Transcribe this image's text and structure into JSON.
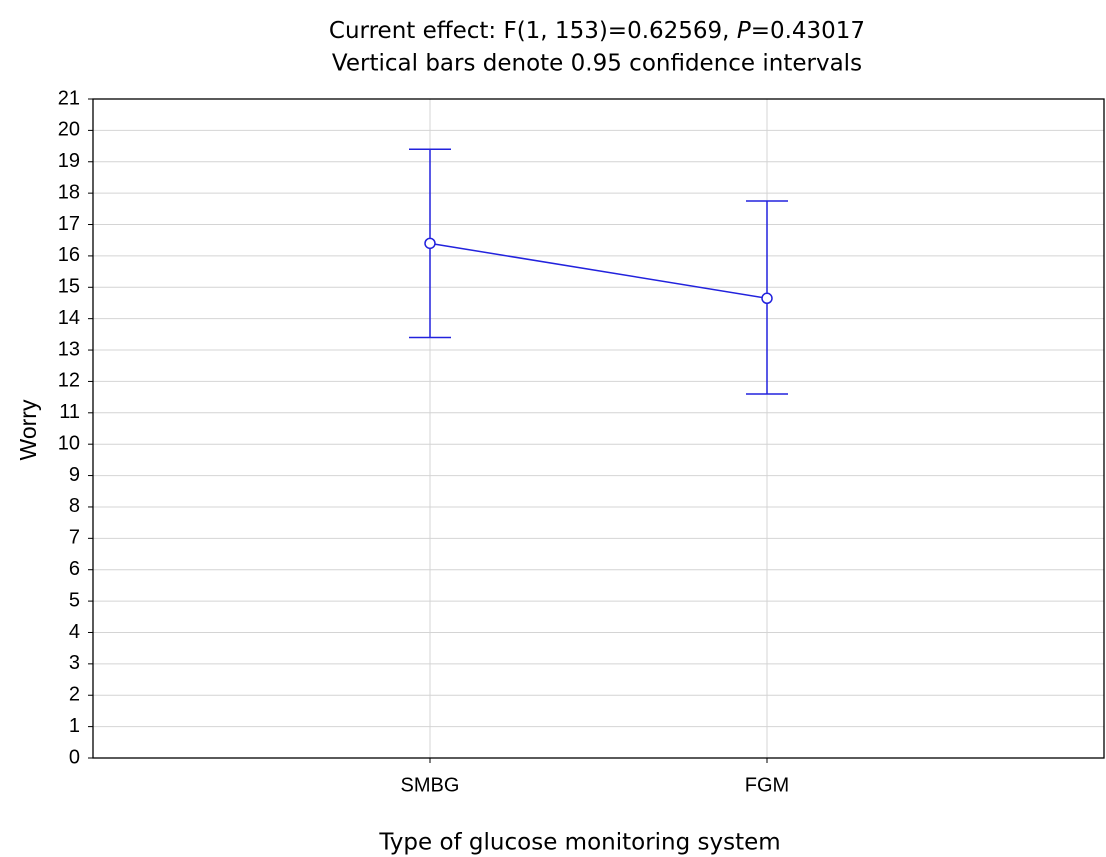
{
  "chart_data": {
    "type": "line",
    "title": [
      {
        "text": "Current effect: F(1, 153)=0.62569, ",
        "italic": false
      },
      {
        "text": "P",
        "italic": true
      },
      {
        "text": "=0.43017",
        "italic": false
      }
    ],
    "subtitle": "Vertical bars denote 0.95 confidence intervals",
    "x_label": "Type of glucose monitoring system",
    "y_label": "Worry",
    "categories": [
      "SMBG",
      "FGM"
    ],
    "series": [
      {
        "color": "#2222dd",
        "values": [
          16.4,
          14.65
        ],
        "lower": [
          13.4,
          11.6
        ],
        "upper": [
          19.4,
          17.75
        ]
      }
    ],
    "ylim": [
      0,
      21
    ],
    "yticks": [
      0,
      1,
      2,
      3,
      4,
      5,
      6,
      7,
      8,
      9,
      10,
      11,
      12,
      13,
      14,
      15,
      16,
      17,
      18,
      19,
      20,
      21
    ],
    "grid": true
  }
}
